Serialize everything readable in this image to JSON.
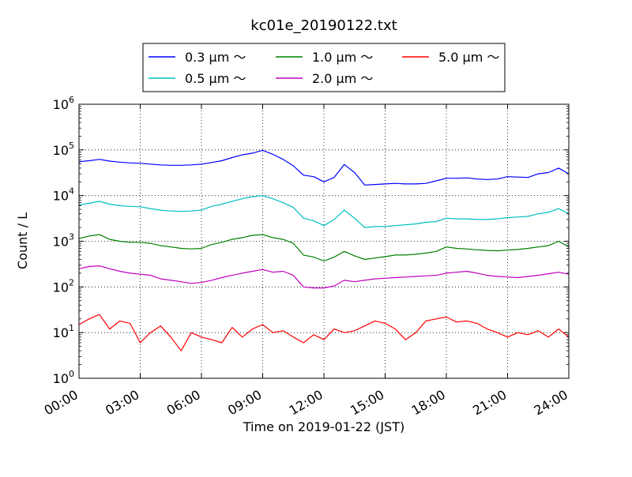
{
  "chart_data": {
    "type": "line",
    "title": "kc01e_20190122.txt",
    "xlabel": "Time on 2019-01-22 (JST)",
    "ylabel": "Count / L",
    "yscale": "log",
    "ylim": [
      1,
      1000000
    ],
    "xlim": [
      "00:00",
      "24:00"
    ],
    "x_ticks": [
      "00:00",
      "03:00",
      "06:00",
      "09:00",
      "12:00",
      "15:00",
      "18:00",
      "21:00",
      "24:00"
    ],
    "y_ticks": [
      {
        "value": 1,
        "base": "10",
        "exp": "0"
      },
      {
        "value": 10,
        "base": "10",
        "exp": "1"
      },
      {
        "value": 100,
        "base": "10",
        "exp": "2"
      },
      {
        "value": 1000,
        "base": "10",
        "exp": "3"
      },
      {
        "value": 10000,
        "base": "10",
        "exp": "4"
      },
      {
        "value": 100000,
        "base": "10",
        "exp": "5"
      },
      {
        "value": 1000000,
        "base": "10",
        "exp": "6"
      }
    ],
    "grid": true,
    "legend_position": "top-center",
    "x_hours": [
      0,
      0.5,
      1,
      1.5,
      2,
      2.5,
      3,
      3.5,
      4,
      4.5,
      5,
      5.5,
      6,
      6.5,
      7,
      7.5,
      8,
      8.5,
      9,
      9.5,
      10,
      10.5,
      11,
      11.5,
      12,
      12.5,
      13,
      13.5,
      14,
      14.5,
      15,
      15.5,
      16,
      16.5,
      17,
      17.5,
      18,
      18.5,
      19,
      19.5,
      20,
      20.5,
      21,
      21.5,
      22,
      22.5,
      23,
      23.5,
      24
    ],
    "series": [
      {
        "name": "0.3 μm ～",
        "color": "#0000ff",
        "values": [
          55000,
          58000,
          62000,
          57000,
          54000,
          52000,
          51000,
          49000,
          47000,
          46000,
          46000,
          47000,
          49000,
          53000,
          58000,
          68000,
          78000,
          85000,
          98000,
          80000,
          62000,
          45000,
          28000,
          26000,
          20000,
          25000,
          48000,
          32000,
          17000,
          17500,
          18000,
          18500,
          18000,
          18000,
          18500,
          21000,
          24000,
          24000,
          24500,
          23000,
          22500,
          23000,
          26000,
          25500,
          25000,
          30000,
          32000,
          40000,
          30000
        ]
      },
      {
        "name": "0.5 μm ～",
        "color": "#00bfbf",
        "values": [
          6200,
          6800,
          7500,
          6500,
          6000,
          5800,
          5700,
          5200,
          4800,
          4600,
          4500,
          4600,
          4800,
          5800,
          6500,
          7500,
          8500,
          9500,
          10000,
          8500,
          7000,
          5500,
          3200,
          2800,
          2200,
          3000,
          4800,
          3200,
          2000,
          2100,
          2100,
          2200,
          2300,
          2400,
          2600,
          2700,
          3200,
          3100,
          3100,
          3000,
          3000,
          3100,
          3300,
          3400,
          3500,
          4000,
          4300,
          5200,
          4000
        ]
      },
      {
        "name": "1.0 μm ～",
        "color": "#008000",
        "values": [
          1150,
          1300,
          1400,
          1100,
          1000,
          950,
          950,
          900,
          800,
          750,
          700,
          680,
          700,
          850,
          950,
          1100,
          1200,
          1350,
          1400,
          1200,
          1100,
          900,
          500,
          450,
          370,
          450,
          600,
          480,
          400,
          430,
          460,
          500,
          500,
          520,
          550,
          600,
          750,
          700,
          680,
          650,
          630,
          620,
          640,
          660,
          700,
          750,
          800,
          1000,
          750
        ]
      },
      {
        "name": "2.0 μm ～",
        "color": "#bf00bf",
        "values": [
          250,
          280,
          290,
          250,
          220,
          200,
          190,
          180,
          150,
          140,
          130,
          120,
          125,
          140,
          160,
          180,
          200,
          220,
          240,
          210,
          220,
          180,
          100,
          95,
          95,
          105,
          140,
          130,
          140,
          150,
          155,
          160,
          165,
          170,
          175,
          180,
          200,
          210,
          220,
          200,
          180,
          170,
          165,
          160,
          170,
          180,
          195,
          210,
          190
        ]
      },
      {
        "name": "5.0 μm ～",
        "color": "#ff0000",
        "values": [
          15,
          20,
          25,
          12,
          18,
          16,
          6,
          10,
          14,
          8,
          4,
          10,
          8,
          7,
          6,
          13,
          8,
          12,
          15,
          10,
          11,
          8,
          6,
          9,
          7,
          12,
          10,
          11,
          14,
          18,
          16,
          12,
          7,
          10,
          18,
          20,
          22,
          17,
          18,
          16,
          12,
          10,
          8,
          10,
          9,
          11,
          8,
          12,
          8
        ]
      }
    ]
  }
}
